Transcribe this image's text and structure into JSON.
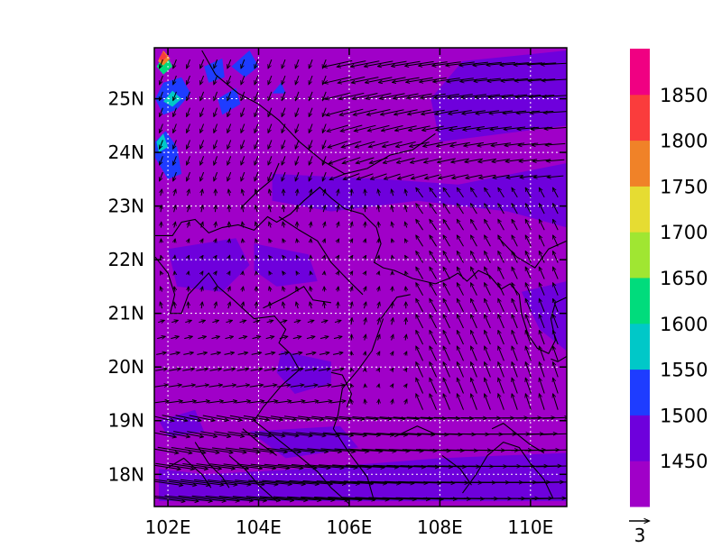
{
  "chart_data": {
    "type": "heatmap",
    "title": "",
    "xlabel": "",
    "ylabel": "",
    "xlim": [
      101.7,
      110.8
    ],
    "ylim": [
      17.4,
      25.95
    ],
    "x_ticks": [
      {
        "value": 102,
        "label": "102E"
      },
      {
        "value": 104,
        "label": "104E"
      },
      {
        "value": 106,
        "label": "106E"
      },
      {
        "value": 108,
        "label": "108E"
      },
      {
        "value": 110,
        "label": "110E"
      }
    ],
    "y_ticks": [
      {
        "value": 18,
        "label": "18N"
      },
      {
        "value": 19,
        "label": "19N"
      },
      {
        "value": 20,
        "label": "20N"
      },
      {
        "value": 21,
        "label": "21N"
      },
      {
        "value": 22,
        "label": "22N"
      },
      {
        "value": 23,
        "label": "23N"
      },
      {
        "value": 24,
        "label": "24N"
      },
      {
        "value": 25,
        "label": "25N"
      }
    ],
    "grid": true,
    "colorbar": {
      "levels": [
        1450,
        1500,
        1550,
        1600,
        1650,
        1700,
        1750,
        1800,
        1850
      ],
      "colors": [
        "#a000c8",
        "#6e00dc",
        "#1e3cff",
        "#00c8c8",
        "#00dc7c",
        "#a0e632",
        "#e6dc32",
        "#f08228",
        "#fa3c3c",
        "#f00082"
      ]
    },
    "field_background": "#a000c8",
    "field_patches": [
      {
        "value_range": "1450-1500",
        "color": "#6e00dc",
        "region": [
          [
            102,
            22.2
          ],
          [
            103.5,
            22.4
          ],
          [
            103.8,
            21.9
          ],
          [
            103.2,
            21.4
          ],
          [
            102.2,
            21.5
          ]
        ]
      },
      {
        "value_range": "1450-1500",
        "color": "#6e00dc",
        "region": [
          [
            103.9,
            22.3
          ],
          [
            105.1,
            22.1
          ],
          [
            105.3,
            21.6
          ],
          [
            104.4,
            21.5
          ],
          [
            103.9,
            21.8
          ]
        ]
      },
      {
        "value_range": "1450-1500",
        "color": "#6e00dc",
        "region": [
          [
            104.5,
            20.3
          ],
          [
            105.6,
            20.1
          ],
          [
            105.6,
            19.7
          ],
          [
            104.8,
            19.5
          ],
          [
            104.4,
            19.9
          ]
        ]
      },
      {
        "value_range": "1450-1500",
        "color": "#6e00dc",
        "region": [
          [
            101.8,
            19.0
          ],
          [
            102.6,
            19.2
          ],
          [
            102.8,
            18.8
          ],
          [
            102,
            18.7
          ]
        ]
      },
      {
        "value_range": "1450-1500",
        "color": "#6e00dc",
        "region": [
          [
            103.8,
            18.8
          ],
          [
            105.8,
            18.9
          ],
          [
            106.2,
            18.5
          ],
          [
            104.6,
            18.3
          ]
        ]
      },
      {
        "value_range": "1450-1500",
        "color": "#6e00dc",
        "region": [
          [
            101.8,
            17.5
          ],
          [
            110.8,
            17.5
          ],
          [
            110.8,
            18.4
          ],
          [
            108,
            18.3
          ],
          [
            105,
            18.1
          ],
          [
            102.8,
            18.0
          ],
          [
            101.8,
            18.1
          ]
        ]
      },
      {
        "value_range": "1450-1500",
        "color": "#6e00dc",
        "region": [
          [
            104.3,
            23.6
          ],
          [
            106.8,
            23.5
          ],
          [
            108.4,
            23.4
          ],
          [
            110.8,
            23.8
          ],
          [
            110.8,
            22.6
          ],
          [
            109.5,
            22.9
          ],
          [
            107.5,
            23.1
          ],
          [
            105.6,
            22.9
          ],
          [
            104.3,
            23.1
          ]
        ]
      },
      {
        "value_range": "1450-1500",
        "color": "#6e00dc",
        "region": [
          [
            108,
            24.2
          ],
          [
            110.8,
            24.5
          ],
          [
            110.8,
            25.9
          ],
          [
            108.5,
            25.7
          ],
          [
            107.8,
            25.0
          ]
        ]
      },
      {
        "value_range": "1450-1500",
        "color": "#6e00dc",
        "region": [
          [
            109.8,
            21.4
          ],
          [
            110.8,
            21.6
          ],
          [
            110.8,
            20.3
          ],
          [
            110.2,
            20.7
          ]
        ]
      },
      {
        "value_range": "1500-1550",
        "color": "#1e3cff",
        "region": [
          [
            101.72,
            24.2
          ],
          [
            101.95,
            24.4
          ],
          [
            102.2,
            24.1
          ],
          [
            102.3,
            23.6
          ],
          [
            102.0,
            23.5
          ],
          [
            101.72,
            23.9
          ]
        ]
      },
      {
        "value_range": "1500-1550",
        "color": "#1e3cff",
        "region": [
          [
            101.72,
            25.0
          ],
          [
            101.9,
            25.3
          ],
          [
            102.3,
            25.4
          ],
          [
            102.5,
            25.1
          ],
          [
            102.2,
            24.8
          ],
          [
            101.9,
            24.7
          ]
        ]
      },
      {
        "value_range": "1500-1550",
        "color": "#1e3cff",
        "region": [
          [
            102.8,
            25.6
          ],
          [
            103.2,
            25.75
          ],
          [
            103.25,
            25.4
          ],
          [
            102.9,
            25.3
          ]
        ]
      },
      {
        "value_range": "1500-1550",
        "color": "#1e3cff",
        "region": [
          [
            103.1,
            25.0
          ],
          [
            103.5,
            25.2
          ],
          [
            103.6,
            24.9
          ],
          [
            103.2,
            24.7
          ]
        ]
      },
      {
        "value_range": "1500-1550",
        "color": "#1e3cff",
        "region": [
          [
            103.4,
            25.6
          ],
          [
            103.8,
            25.9
          ],
          [
            104.0,
            25.6
          ],
          [
            103.7,
            25.4
          ]
        ]
      },
      {
        "value_range": "1500-1550",
        "color": "#1e3cff",
        "region": [
          [
            104.3,
            25.1
          ],
          [
            104.5,
            25.3
          ],
          [
            104.6,
            25.1
          ]
        ]
      },
      {
        "value_range": "1550-1600",
        "color": "#00c8c8",
        "region": [
          [
            101.75,
            24.2
          ],
          [
            101.9,
            24.35
          ],
          [
            102.0,
            24.1
          ],
          [
            101.8,
            24.0
          ]
        ]
      },
      {
        "value_range": "1550-1600",
        "color": "#00c8c8",
        "region": [
          [
            101.9,
            24.95
          ],
          [
            102.1,
            25.15
          ],
          [
            102.3,
            25.0
          ],
          [
            102.1,
            24.85
          ]
        ]
      },
      {
        "value_range": "1600-1650",
        "color": "#00dc7c",
        "region": [
          [
            101.75,
            25.6
          ],
          [
            101.95,
            25.85
          ],
          [
            102.1,
            25.6
          ],
          [
            101.9,
            25.45
          ]
        ]
      },
      {
        "value_range": "1750-1800",
        "color": "#f08228",
        "region": [
          [
            101.78,
            25.7
          ],
          [
            101.9,
            25.9
          ],
          [
            102.05,
            25.75
          ],
          [
            101.9,
            25.62
          ]
        ]
      },
      {
        "value_range": "1800-1850",
        "color": "#fa3c3c",
        "region": [
          [
            101.8,
            25.75
          ],
          [
            101.9,
            25.88
          ],
          [
            101.98,
            25.78
          ],
          [
            101.88,
            25.7
          ]
        ]
      }
    ],
    "boundaries": [
      [
        [
          101.72,
          22.45
        ],
        [
          102.1,
          22.45
        ],
        [
          102.3,
          22.7
        ],
        [
          102.6,
          22.75
        ],
        [
          102.9,
          22.5
        ],
        [
          103.2,
          22.6
        ],
        [
          103.55,
          22.65
        ],
        [
          103.9,
          22.55
        ],
        [
          104.2,
          22.8
        ],
        [
          104.4,
          22.7
        ],
        [
          104.7,
          22.85
        ],
        [
          105.0,
          23.1
        ],
        [
          105.35,
          23.35
        ],
        [
          105.6,
          23.15
        ],
        [
          105.9,
          22.95
        ],
        [
          106.3,
          22.85
        ],
        [
          106.6,
          22.6
        ],
        [
          106.7,
          22.3
        ],
        [
          106.55,
          21.95
        ],
        [
          106.75,
          21.85
        ],
        [
          107.0,
          21.8
        ],
        [
          107.4,
          21.65
        ],
        [
          107.9,
          21.55
        ]
      ],
      [
        [
          101.72,
          22.05
        ],
        [
          102.0,
          21.75
        ],
        [
          102.15,
          21.35
        ],
        [
          102.05,
          21.0
        ],
        [
          102.3,
          21.0
        ],
        [
          102.45,
          21.35
        ],
        [
          102.9,
          21.75
        ],
        [
          103.1,
          21.5
        ],
        [
          103.45,
          21.25
        ],
        [
          103.9,
          20.9
        ],
        [
          104.35,
          20.95
        ],
        [
          104.6,
          20.7
        ],
        [
          104.45,
          20.45
        ],
        [
          104.7,
          20.25
        ],
        [
          104.9,
          19.95
        ],
        [
          104.5,
          19.65
        ],
        [
          104.1,
          19.25
        ],
        [
          103.9,
          19.0
        ],
        [
          104.35,
          18.7
        ],
        [
          104.95,
          18.3
        ],
        [
          105.3,
          18.05
        ],
        [
          105.6,
          17.75
        ],
        [
          106.0,
          17.45
        ]
      ],
      [
        [
          106.75,
          20.9
        ],
        [
          106.5,
          20.3
        ],
        [
          106.2,
          19.95
        ],
        [
          105.85,
          19.6
        ],
        [
          105.75,
          19.1
        ],
        [
          105.65,
          18.85
        ],
        [
          106.0,
          18.4
        ],
        [
          106.4,
          17.95
        ],
        [
          106.55,
          17.5
        ]
      ],
      [
        [
          104.45,
          22.8
        ],
        [
          104.9,
          22.55
        ],
        [
          105.3,
          22.35
        ],
        [
          105.6,
          21.95
        ],
        [
          106.0,
          21.6
        ],
        [
          106.3,
          21.35
        ]
      ],
      [
        [
          103.35,
          18.35
        ],
        [
          103.7,
          18.1
        ],
        [
          104.0,
          17.8
        ],
        [
          104.4,
          17.5
        ]
      ],
      [
        [
          102.6,
          18.6
        ],
        [
          102.9,
          18.2
        ],
        [
          103.2,
          17.95
        ],
        [
          103.35,
          17.75
        ]
      ],
      [
        [
          102.75,
          25.9
        ],
        [
          103.05,
          25.45
        ],
        [
          103.55,
          25.1
        ],
        [
          104.0,
          24.9
        ],
        [
          104.45,
          24.6
        ],
        [
          104.9,
          24.2
        ],
        [
          105.4,
          23.85
        ],
        [
          105.9,
          23.6
        ],
        [
          106.4,
          23.7
        ],
        [
          106.9,
          23.95
        ],
        [
          107.4,
          24.05
        ],
        [
          107.9,
          24.35
        ]
      ],
      [
        [
          103.65,
          23.0
        ],
        [
          103.95,
          23.25
        ],
        [
          104.3,
          23.5
        ],
        [
          104.45,
          23.8
        ]
      ],
      [
        [
          104.1,
          21.1
        ],
        [
          104.6,
          21.3
        ],
        [
          105.0,
          21.5
        ],
        [
          105.2,
          21.25
        ],
        [
          105.6,
          21.2
        ]
      ],
      [
        [
          105.6,
          19.9
        ],
        [
          105.85,
          19.85
        ],
        [
          106.05,
          19.5
        ],
        [
          105.95,
          19.25
        ]
      ],
      [
        [
          101.95,
          18.1
        ],
        [
          102.35,
          18.3
        ],
        [
          102.75,
          18.0
        ],
        [
          102.95,
          17.75
        ]
      ],
      [
        [
          103.65,
          18.85
        ],
        [
          104.0,
          18.6
        ],
        [
          104.4,
          18.35
        ]
      ],
      [
        [
          107.9,
          21.55
        ],
        [
          108.2,
          21.65
        ],
        [
          108.4,
          21.75
        ],
        [
          108.6,
          21.6
        ],
        [
          108.85,
          21.8
        ],
        [
          109.1,
          21.7
        ],
        [
          109.35,
          21.45
        ],
        [
          109.55,
          21.55
        ],
        [
          109.75,
          21.35
        ],
        [
          109.8,
          21.0
        ],
        [
          109.95,
          20.6
        ],
        [
          110.15,
          20.35
        ],
        [
          110.4,
          20.25
        ],
        [
          110.55,
          20.5
        ],
        [
          110.45,
          20.9
        ],
        [
          110.55,
          21.2
        ],
        [
          110.8,
          21.3
        ]
      ],
      [
        [
          110.8,
          20.2
        ],
        [
          110.6,
          20.1
        ],
        [
          110.45,
          20.15
        ]
      ],
      [
        [
          109.15,
          18.85
        ],
        [
          109.4,
          18.95
        ],
        [
          109.7,
          18.75
        ],
        [
          110.0,
          18.55
        ],
        [
          110.3,
          18.4
        ]
      ],
      [
        [
          108.5,
          17.65
        ],
        [
          108.8,
          18.0
        ],
        [
          109.05,
          18.35
        ],
        [
          109.4,
          18.6
        ],
        [
          109.75,
          18.5
        ],
        [
          110.0,
          18.2
        ],
        [
          110.3,
          17.9
        ],
        [
          110.5,
          17.55
        ]
      ],
      [
        [
          109.3,
          22.4
        ],
        [
          109.7,
          22.05
        ],
        [
          110.1,
          21.85
        ],
        [
          110.4,
          22.2
        ],
        [
          110.8,
          22.35
        ]
      ],
      [
        [
          108.05,
          18.35
        ],
        [
          108.45,
          18.1
        ],
        [
          108.7,
          17.8
        ]
      ],
      [
        [
          107.0,
          18.7
        ],
        [
          107.5,
          18.9
        ],
        [
          107.9,
          18.75
        ]
      ],
      [
        [
          106.7,
          20.9
        ],
        [
          107.05,
          21.3
        ],
        [
          107.35,
          21.35
        ]
      ]
    ],
    "wind_vectors_uv_per_point_description": "model-grid wind arrows; reference arrow length = 3",
    "wind_reference_vector": 3
  }
}
